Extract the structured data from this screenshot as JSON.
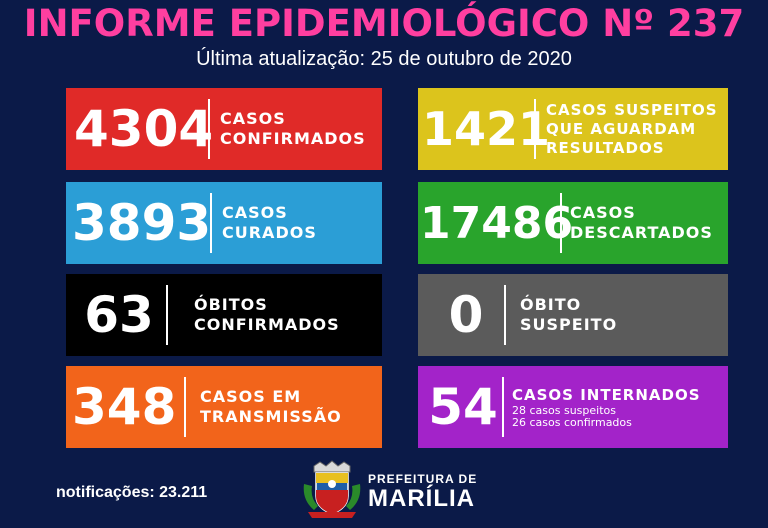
{
  "header": {
    "title": "INFORME EPIDEMIOLÓGICO Nº 237",
    "subtitle": "Última atualização: 25 de outubro de 2020"
  },
  "boxes": [
    {
      "value": "4304",
      "line1": "CASOS",
      "line2": "CONFIRMADOS",
      "color": "#e02a28"
    },
    {
      "value": "1421",
      "line1": "CASOS SUSPEITOS",
      "line2": "QUE AGUARDAM",
      "line3": "RESULTADOS",
      "color": "#dcc41c"
    },
    {
      "value": "3893",
      "line1": "CASOS",
      "line2": "CURADOS",
      "color": "#2b9ed6"
    },
    {
      "value": "17486",
      "line1": "CASOS",
      "line2": "DESCARTADOS",
      "color": "#29a42c"
    },
    {
      "value": "63",
      "line1": "ÓBITOS",
      "line2": "CONFIRMADOS",
      "color": "#000000"
    },
    {
      "value": "0",
      "line1": "ÓBITO",
      "line2": "SUSPEITO",
      "color": "#5b5b5b"
    },
    {
      "value": "348",
      "line1": "CASOS EM",
      "line2": "TRANSMISSÃO",
      "color": "#f2641b"
    },
    {
      "value": "54",
      "line1": "CASOS INTERNADOS",
      "line2": "28 casos suspeitos",
      "line3": "26 casos confirmados",
      "color": "#a323c9"
    }
  ],
  "footer": {
    "notifications": "notificações: 23.211",
    "pref_line1": "PREFEITURA DE",
    "pref_line2": "MARÍLIA",
    "logo_icon": "city-coat-of-arms-icon"
  }
}
